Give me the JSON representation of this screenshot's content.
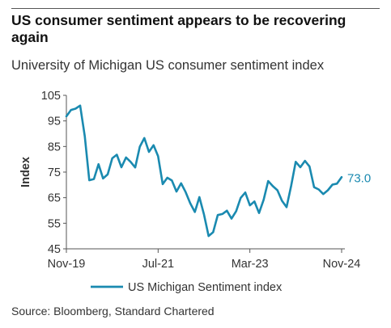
{
  "header": {
    "title": "US consumer sentiment appears to be recovering again",
    "subtitle": "University of Michigan US consumer sentiment index"
  },
  "footer": {
    "source": "Source: Bloomberg, Standard Chartered"
  },
  "colors": {
    "line": "#1a8ab0",
    "axis": "#555555",
    "text": "#333333"
  },
  "chart_data": {
    "type": "line",
    "title": "US consumer sentiment appears to be recovering again",
    "subtitle": "University of Michigan US consumer sentiment index",
    "xlabel": "",
    "ylabel": "Index",
    "ylim": [
      45,
      105
    ],
    "yticks": [
      45,
      55,
      65,
      75,
      85,
      95,
      105
    ],
    "xticks": [
      {
        "label": "Nov-19",
        "date": "2019-11"
      },
      {
        "label": "Jul-21",
        "date": "2021-07"
      },
      {
        "label": "Mar-23",
        "date": "2023-03"
      },
      {
        "label": "Nov-24",
        "date": "2024-11"
      }
    ],
    "grid": false,
    "legend": "bottom",
    "end_label": "73.0",
    "series": [
      {
        "name": "US Michigan Sentiment index",
        "x": [
          "2019-11",
          "2019-12",
          "2020-01",
          "2020-02",
          "2020-03",
          "2020-04",
          "2020-05",
          "2020-06",
          "2020-07",
          "2020-08",
          "2020-09",
          "2020-10",
          "2020-11",
          "2020-12",
          "2021-01",
          "2021-02",
          "2021-03",
          "2021-04",
          "2021-05",
          "2021-06",
          "2021-07",
          "2021-08",
          "2021-09",
          "2021-10",
          "2021-11",
          "2021-12",
          "2022-01",
          "2022-02",
          "2022-03",
          "2022-04",
          "2022-05",
          "2022-06",
          "2022-07",
          "2022-08",
          "2022-09",
          "2022-10",
          "2022-11",
          "2022-12",
          "2023-01",
          "2023-02",
          "2023-03",
          "2023-04",
          "2023-05",
          "2023-06",
          "2023-07",
          "2023-08",
          "2023-09",
          "2023-10",
          "2023-11",
          "2023-12",
          "2024-01",
          "2024-02",
          "2024-03",
          "2024-04",
          "2024-05",
          "2024-06",
          "2024-07",
          "2024-08",
          "2024-09",
          "2024-10",
          "2024-11"
        ],
        "values": [
          96.8,
          99.3,
          99.8,
          101.0,
          89.1,
          71.8,
          72.3,
          78.1,
          72.5,
          74.1,
          80.4,
          81.8,
          76.9,
          80.7,
          79.0,
          76.8,
          84.9,
          88.3,
          82.9,
          85.5,
          81.2,
          70.3,
          72.8,
          71.7,
          67.4,
          70.6,
          67.2,
          62.8,
          59.4,
          65.2,
          58.4,
          50.0,
          51.5,
          58.2,
          58.6,
          59.9,
          56.8,
          59.7,
          64.9,
          67.0,
          62.0,
          63.5,
          59.0,
          64.2,
          71.5,
          69.5,
          67.9,
          63.8,
          61.3,
          69.7,
          79.0,
          76.9,
          79.4,
          77.2,
          69.1,
          68.2,
          66.4,
          67.9,
          70.1,
          70.5,
          73.0
        ]
      }
    ]
  }
}
